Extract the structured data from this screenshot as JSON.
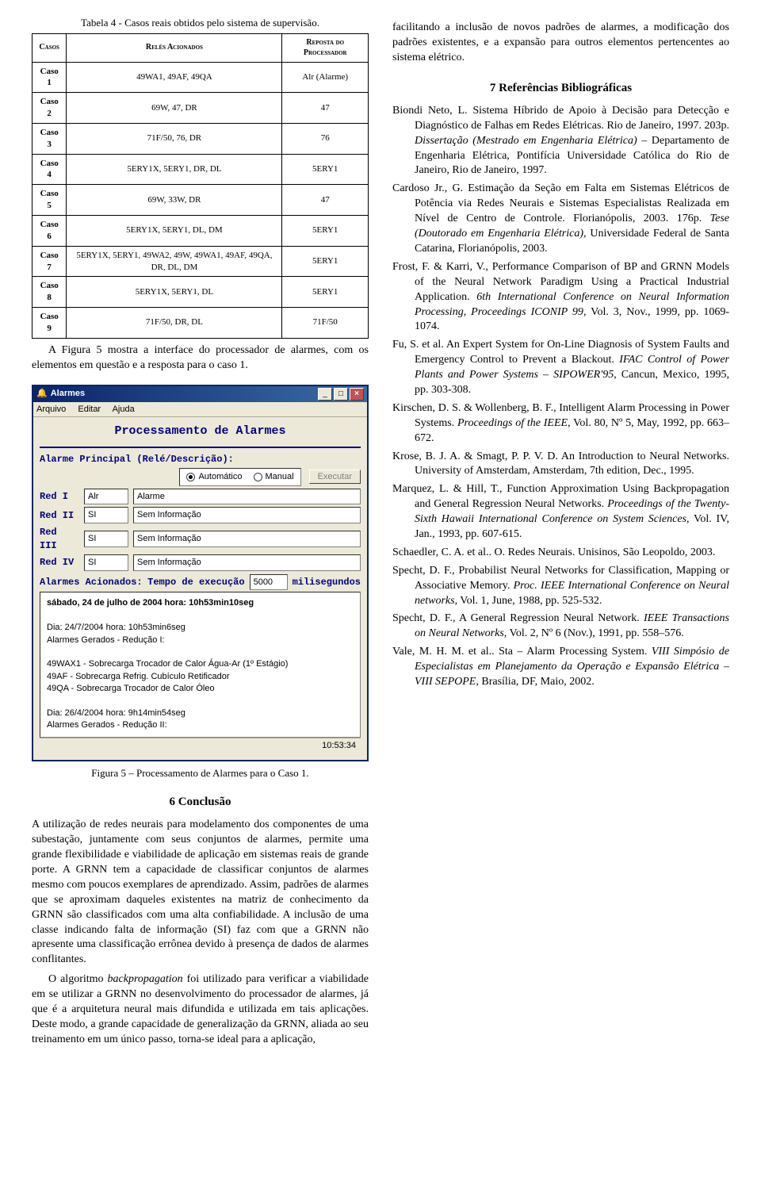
{
  "table": {
    "caption": "Tabela 4 - Casos reais obtidos pelo sistema de supervisão.",
    "headers": [
      "Casos",
      "Relés Acionados",
      "Reposta do Processador"
    ],
    "rows": [
      [
        "Caso 1",
        "49WA1, 49AF, 49QA",
        "Alr (Alarme)"
      ],
      [
        "Caso 2",
        "69W, 47, DR",
        "47"
      ],
      [
        "Caso 3",
        "71F/50, 76, DR",
        "76"
      ],
      [
        "Caso 4",
        "5ERY1X, 5ERY1, DR, DL",
        "5ERY1"
      ],
      [
        "Caso 5",
        "69W, 33W, DR",
        "47"
      ],
      [
        "Caso 6",
        "5ERY1X, 5ERY1, DL, DM",
        "5ERY1"
      ],
      [
        "Caso 7",
        "5ERY1X, 5ERY1, 49WA2, 49W, 49WA1, 49AF, 49QA, DR, DL, DM",
        "5ERY1"
      ],
      [
        "Caso 8",
        "5ERY1X, 5ERY1, DL",
        "5ERY1"
      ],
      [
        "Caso 9",
        "71F/50, DR, DL",
        "71F/50"
      ]
    ]
  },
  "paragraphs": {
    "p_after_table": "A Figura 5 mostra a interface do processador de alarmes, com os elementos em questão e a resposta para o caso 1.",
    "fig_caption": "Figura 5 – Processamento de Alarmes para o Caso 1.",
    "section6_title": "6    Conclusão",
    "p_conc_1": "A utilização de redes neurais para modelamento dos componentes de uma subestação, juntamente com seus conjuntos de alarmes, permite uma grande flexibilidade e viabilidade de aplicação em sistemas reais de grande porte.  A GRNN tem a capacidade de classificar conjuntos de alarmes mesmo com poucos exemplares de aprendizado. Assim, padrões de alarmes que se aproximam daqueles existentes na matriz de conhecimento da GRNN são classificados com uma alta confiabilidade. A inclusão de uma classe indicando falta de informação (SI) faz com que a GRNN não apresente uma classificação errônea devido à presença de dados de alarmes conflitantes.",
    "p_conc_2_a": "O algoritmo ",
    "p_conc_2_b": "backpropagation",
    "p_conc_2_c": " foi utilizado para verificar a viabilidade em se utilizar a GRNN no desenvolvimento do processador de alarmes, já que é a arquitetura neural mais difundida e utilizada em tais aplicações. Deste modo, a grande capacidade de generalização da GRNN, aliada ao seu treinamento em um único passo, torna-se ideal para a aplicação,",
    "p_right_top": "facilitando a inclusão de novos padrões de alarmes, a modificação dos padrões existentes, e a expansão para outros elementos pertencentes ao sistema elétrico.",
    "section7_title": "7    Referências Bibliográficas"
  },
  "app": {
    "window_title": "Alarmes",
    "menu": [
      "Arquivo",
      "Editar",
      "Ajuda"
    ],
    "panel_title": "Processamento de Alarmes",
    "principal_label": "Alarme Principal (Relé/Descrição):",
    "radio_auto": "Automático",
    "radio_manual": "Manual",
    "exec_btn": "Executar",
    "fields": [
      {
        "label": "Red I",
        "short": "Alr",
        "long": "Alarme"
      },
      {
        "label": "Red II",
        "short": "SI",
        "long": "Sem Informação"
      },
      {
        "label": "Red III",
        "short": "SI",
        "long": "Sem Informação"
      },
      {
        "label": "Red IV",
        "short": "SI",
        "long": "Sem Informação"
      }
    ],
    "acionados_label": "Alarmes Acionados:",
    "tempo_label": "Tempo de execução",
    "tempo_value": "5000",
    "tempo_unit": "milisegundos",
    "output_lines": [
      "sábado, 24 de julho de 2004  hora: 10h53min10seg",
      "",
      "Dia: 24/7/2004  hora: 10h53min6seg",
      "Alarmes Gerados - Redução I:",
      "",
      "49WAX1 - Sobrecarga Trocador de Calor Água-Ar (1º Estágio)",
      "49AF - Sobrecarga Refrig. Cubículo Retificador",
      "49QA - Sobrecarga Trocador de Calor Óleo",
      "",
      "Dia: 26/4/2004  hora: 9h14min54seg",
      "Alarmes Gerados - Redução II:"
    ],
    "status_time": "10:53:34"
  },
  "refs": [
    {
      "plain": "Biondi Neto, L. Sistema Híbrido de Apoio à Decisão para Detecção e Diagnóstico de Falhas em Redes Elétricas. Rio de Janeiro, 1997. 203p. ",
      "italic": "Dissertação (Mestrado em Engenharia Elétrica)",
      "tail": " – Departamento de Engenharia Elétrica, Pontifícia Universidade Católica do Rio de Janeiro, Rio de Janeiro, 1997."
    },
    {
      "plain": "Cardoso Jr., G. Estimação da Seção em Falta em Sistemas Elétricos de Potência via Redes Neurais e Sistemas Especialistas Realizada em Nível de Centro de Controle. Florianópolis, 2003. 176p. ",
      "italic": "Tese (Doutorado em Engenharia Elétrica)",
      "tail": ", Universidade Federal de Santa Catarina, Florianópolis, 2003."
    },
    {
      "plain": "Frost, F. & Karri, V., Performance Comparison of BP and GRNN Models of the Neural Network Paradigm Using a Practical Industrial Application. ",
      "italic": "6th International Conference on Neural Information Processing, Proceedings ICONIP 99",
      "tail": ", Vol. 3, Nov., 1999, pp. 1069-1074."
    },
    {
      "plain": "Fu, S. et al. An Expert System for On-Line Diagnosis of System Faults and Emergency Control to Prevent a Blackout. ",
      "italic": "IFAC Control of Power Plants and Power Systems – SIPOWER'95",
      "tail": ", Cancun, Mexico, 1995, pp. 303-308."
    },
    {
      "plain": "Kirschen, D. S. & Wollenberg, B. F., Intelligent Alarm Processing in Power Systems. ",
      "italic": "Proceedings of the IEEE",
      "tail": ", Vol. 80, Nº 5, May, 1992, pp. 663–672."
    },
    {
      "plain": "Krose, B. J. A. & Smagt, P. P. V. D. An Introduction to Neural Networks. University of Amsterdam, Amsterdam, 7th edition, Dec., 1995.",
      "italic": "",
      "tail": ""
    },
    {
      "plain": "Marquez, L. & Hill, T., Function Approximation Using Backpropagation and General Regression Neural Networks. ",
      "italic": "Proceedings of the Twenty-Sixth Hawaii International Conference on System Sciences",
      "tail": ", Vol. IV, Jan., 1993, pp. 607-615."
    },
    {
      "plain": "Schaedler, C. A. et al.. O. Redes Neurais. Unisinos, São Leopoldo, 2003.",
      "italic": "",
      "tail": ""
    },
    {
      "plain": "Specht, D. F., Probabilist Neural Networks for Classification, Mapping or Associative Memory. ",
      "italic": "Proc. IEEE International Conference on Neural networks",
      "tail": ", Vol. 1, June, 1988, pp. 525-532."
    },
    {
      "plain": "Specht, D. F., A General Regression Neural Network. ",
      "italic": "IEEE Transactions on Neural Networks",
      "tail": ", Vol. 2, Nº 6 (Nov.), 1991, pp. 558–576."
    },
    {
      "plain": "Vale, M. H. M. et al.. Sta – Alarm Processing System. ",
      "italic": "VIII Simpósio de Especialistas em Planejamento da Operação e Expansão Elétrica – VIII SEPOPE",
      "tail": ", Brasília, DF, Maio, 2002."
    }
  ]
}
